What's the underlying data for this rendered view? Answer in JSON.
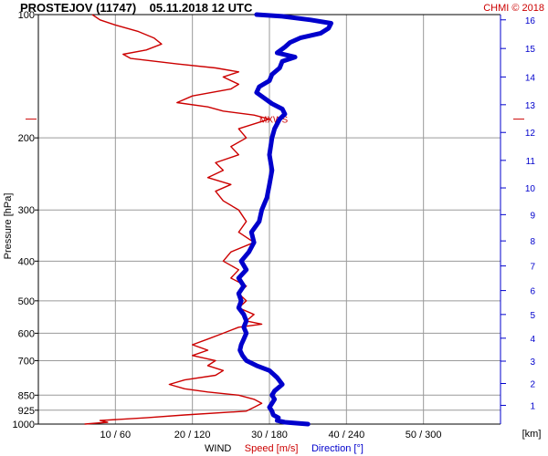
{
  "chart_data": {
    "type": "line",
    "title": "PROSTEJOV (11747)    05.11.2018 12 UTC",
    "credit": "CHMI © 2018",
    "ylabel": "Pressure [hPa]",
    "y_scale": "log",
    "ylim": [
      1000,
      100
    ],
    "pressure_ticks": [
      "100",
      "200",
      "300",
      "400",
      "500",
      "600",
      "700",
      "850",
      "925",
      "1000"
    ],
    "pressure_values": [
      100,
      200,
      300,
      400,
      500,
      600,
      700,
      850,
      925,
      1000
    ],
    "x_ticks": [
      "10 / 60",
      "20 / 120",
      "30 / 180",
      "40 / 240",
      "50 / 300"
    ],
    "x_tick_speed": [
      10,
      20,
      30,
      40,
      50
    ],
    "xlim_speed": [
      0,
      60
    ],
    "xlim_direction": [
      0,
      360
    ],
    "km_unit": "[km]",
    "km_ticks": [
      "1",
      "2",
      "3",
      "4",
      "5",
      "6",
      "7",
      "8",
      "9",
      "10",
      "11",
      "12",
      "13",
      "14",
      "15",
      "16"
    ],
    "km_pressures": [
      900,
      796,
      702,
      617,
      540,
      472,
      411,
      357,
      308,
      265,
      227,
      194,
      166,
      142,
      121,
      103
    ],
    "xlabel_prefix": "WIND",
    "legend_speed": "Speed [m/s]",
    "legend_direction": "Direction [°]",
    "mxws_label": "MXWS",
    "mxws_pressure": 180,
    "series": [
      {
        "name": "Speed [m/s]",
        "color": "#cc0000",
        "points": [
          [
            1000,
            6
          ],
          [
            990,
            9
          ],
          [
            980,
            8
          ],
          [
            965,
            14
          ],
          [
            950,
            19
          ],
          [
            930,
            27
          ],
          [
            910,
            28
          ],
          [
            890,
            29
          ],
          [
            870,
            28
          ],
          [
            850,
            26
          ],
          [
            835,
            22
          ],
          [
            820,
            19
          ],
          [
            800,
            17
          ],
          [
            780,
            19
          ],
          [
            760,
            23
          ],
          [
            740,
            24
          ],
          [
            720,
            22
          ],
          [
            700,
            23
          ],
          [
            680,
            20
          ],
          [
            660,
            22
          ],
          [
            640,
            20
          ],
          [
            620,
            22
          ],
          [
            600,
            24
          ],
          [
            580,
            26
          ],
          [
            570,
            29
          ],
          [
            560,
            27
          ],
          [
            540,
            28
          ],
          [
            520,
            26
          ],
          [
            500,
            27
          ],
          [
            480,
            26
          ],
          [
            460,
            27
          ],
          [
            440,
            25
          ],
          [
            420,
            26
          ],
          [
            400,
            24
          ],
          [
            380,
            25
          ],
          [
            360,
            28
          ],
          [
            340,
            26
          ],
          [
            320,
            27
          ],
          [
            300,
            26
          ],
          [
            285,
            24
          ],
          [
            270,
            23
          ],
          [
            260,
            25
          ],
          [
            250,
            22
          ],
          [
            240,
            24
          ],
          [
            230,
            23
          ],
          [
            220,
            26
          ],
          [
            210,
            25
          ],
          [
            200,
            27
          ],
          [
            190,
            26
          ],
          [
            180,
            30
          ],
          [
            176,
            28
          ],
          [
            172,
            24
          ],
          [
            168,
            22
          ],
          [
            164,
            18
          ],
          [
            158,
            20
          ],
          [
            152,
            25
          ],
          [
            148,
            26
          ],
          [
            142,
            24
          ],
          [
            138,
            26
          ],
          [
            135,
            23
          ],
          [
            132,
            18
          ],
          [
            128,
            12
          ],
          [
            125,
            11
          ],
          [
            122,
            14
          ],
          [
            118,
            16
          ],
          [
            114,
            15
          ],
          [
            110,
            13
          ],
          [
            106,
            10
          ],
          [
            103,
            8
          ],
          [
            100,
            7
          ]
        ]
      },
      {
        "name": "Direction [°]",
        "color": "#0000cc",
        "points": [
          [
            1000,
            210
          ],
          [
            990,
            192
          ],
          [
            980,
            186
          ],
          [
            965,
            187
          ],
          [
            950,
            183
          ],
          [
            930,
            182
          ],
          [
            910,
            180
          ],
          [
            890,
            182
          ],
          [
            870,
            184
          ],
          [
            850,
            182
          ],
          [
            830,
            184
          ],
          [
            800,
            190
          ],
          [
            770,
            186
          ],
          [
            740,
            180
          ],
          [
            720,
            170
          ],
          [
            700,
            162
          ],
          [
            680,
            159
          ],
          [
            660,
            157
          ],
          [
            640,
            158
          ],
          [
            620,
            160
          ],
          [
            600,
            162
          ],
          [
            580,
            160
          ],
          [
            560,
            162
          ],
          [
            540,
            160
          ],
          [
            520,
            156
          ],
          [
            500,
            158
          ],
          [
            480,
            156
          ],
          [
            460,
            160
          ],
          [
            440,
            156
          ],
          [
            420,
            162
          ],
          [
            400,
            158
          ],
          [
            380,
            164
          ],
          [
            360,
            168
          ],
          [
            340,
            166
          ],
          [
            320,
            172
          ],
          [
            300,
            174
          ],
          [
            280,
            178
          ],
          [
            260,
            180
          ],
          [
            240,
            182
          ],
          [
            220,
            180
          ],
          [
            200,
            182
          ],
          [
            190,
            184
          ],
          [
            180,
            188
          ],
          [
            175,
            192
          ],
          [
            170,
            190
          ],
          [
            165,
            182
          ],
          [
            160,
            176
          ],
          [
            155,
            170
          ],
          [
            150,
            172
          ],
          [
            145,
            180
          ],
          [
            140,
            182
          ],
          [
            135,
            188
          ],
          [
            130,
            190
          ],
          [
            127,
            200
          ],
          [
            124,
            186
          ],
          [
            120,
            192
          ],
          [
            117,
            196
          ],
          [
            114,
            204
          ],
          [
            111,
            220
          ],
          [
            108,
            226
          ],
          [
            105,
            228
          ],
          [
            103,
            212
          ],
          [
            101,
            190
          ],
          [
            100,
            170
          ]
        ]
      }
    ]
  }
}
